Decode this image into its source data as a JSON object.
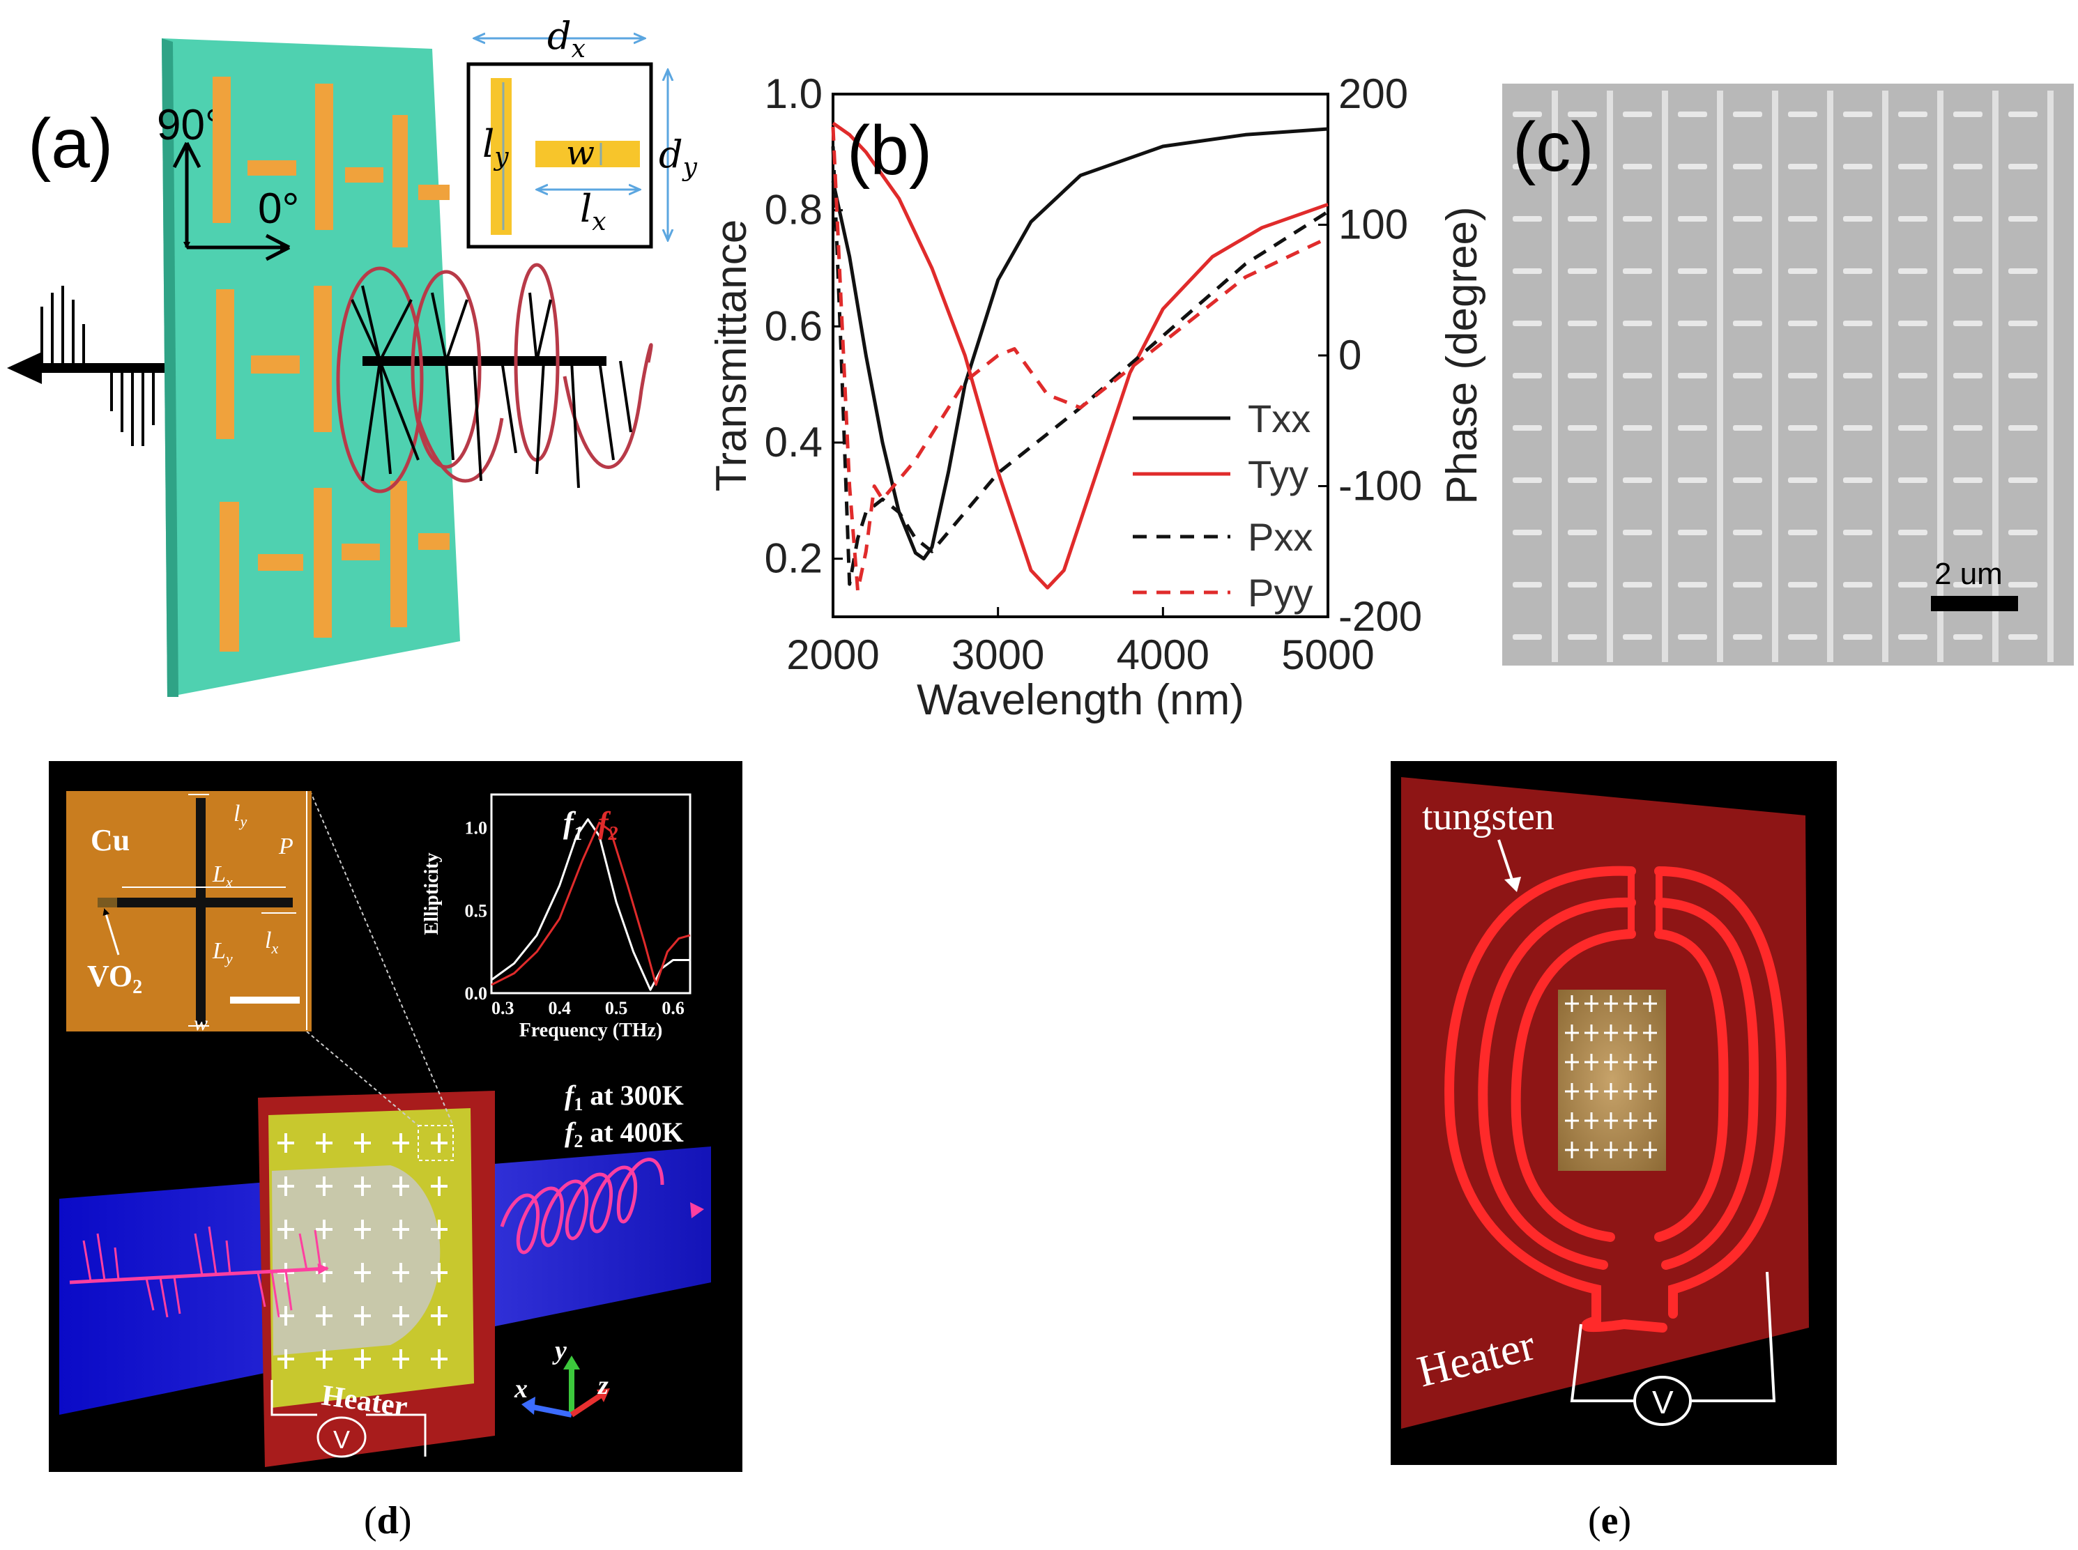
{
  "colors": {
    "green_plate": "#4fd1b0",
    "orange_bar": "#f0a23c",
    "red_curve": "#e02b2b",
    "sem_bg": "#b8b8b8",
    "dark_panel": "#000000",
    "copper": "#c97d1f",
    "heater_red": "#8e1515",
    "beam_blue": "#1a1ad0",
    "pink": "#ff3fa0"
  },
  "panel_a": {
    "label": "(a)",
    "angle_90": "90°",
    "angle_0": "0°",
    "inset": {
      "dx": "d",
      "dx_sub": "x",
      "dy": "d",
      "dy_sub": "y",
      "ly": "l",
      "ly_sub": "y",
      "lx": "l",
      "lx_sub": "x",
      "w": "w"
    }
  },
  "panel_b": {
    "label": "(b)",
    "legend": [
      "Txx",
      "Tyy",
      "Pxx",
      "Pyy"
    ]
  },
  "panel_c": {
    "label": "(c)",
    "scale_bar": "2 um"
  },
  "panel_d": {
    "material_cu": "Cu",
    "material_vo2": "VO",
    "vo2_sub": "2",
    "dims": {
      "ly": "l",
      "ly_sub": "y",
      "P": "P",
      "Lx": "L",
      "Lx_sub": "x",
      "Ly": "L",
      "Ly_sub": "y",
      "lx": "l",
      "lx_sub": "x",
      "w": "w"
    },
    "f1": "f",
    "f1_sub": "1",
    "f2": "f",
    "f2_sub": "2",
    "f1_temp": " at 300K",
    "f2_temp": " at 400K",
    "heater": "Heater",
    "voltage": "V",
    "axis_x": "x",
    "axis_y": "y",
    "axis_z": "z"
  },
  "panel_e": {
    "tungsten": "tungsten",
    "heater": "Heater",
    "voltage": "V"
  },
  "captions": {
    "d": "d",
    "e": "e"
  },
  "chart_data": [
    {
      "type": "line",
      "id": "panel-b",
      "title": "",
      "xlabel": "Wavelength (nm)",
      "ylabel": "Transmittance",
      "y2label": "Phase (degree)",
      "xlim": [
        2000,
        5000
      ],
      "ylim": [
        0.1,
        1.0
      ],
      "y2lim": [
        -200,
        200
      ],
      "xticks": [
        "2000",
        "3000",
        "4000",
        "5000"
      ],
      "yticks": [
        "0.2",
        "0.4",
        "0.6",
        "0.8",
        "1.0"
      ],
      "y2ticks": [
        "-200",
        "-100",
        "0",
        "100",
        "200"
      ],
      "series": [
        {
          "name": "Txx",
          "axis": "left",
          "color": "#111111",
          "dash": "solid",
          "x": [
            2000,
            2100,
            2200,
            2300,
            2400,
            2500,
            2550,
            2600,
            2700,
            2800,
            3000,
            3200,
            3500,
            4000,
            4500,
            5000
          ],
          "y": [
            0.85,
            0.72,
            0.55,
            0.4,
            0.28,
            0.21,
            0.2,
            0.22,
            0.35,
            0.5,
            0.68,
            0.78,
            0.86,
            0.91,
            0.93,
            0.94
          ]
        },
        {
          "name": "Tyy",
          "axis": "left",
          "color": "#e02b2b",
          "dash": "solid",
          "x": [
            2000,
            2100,
            2200,
            2400,
            2600,
            2800,
            3000,
            3200,
            3300,
            3400,
            3600,
            3800,
            4000,
            4300,
            4600,
            5000
          ],
          "y": [
            0.95,
            0.93,
            0.9,
            0.82,
            0.7,
            0.55,
            0.35,
            0.18,
            0.15,
            0.18,
            0.35,
            0.52,
            0.63,
            0.72,
            0.77,
            0.81
          ]
        },
        {
          "name": "Pxx",
          "axis": "right",
          "color": "#111111",
          "dash": "dashed",
          "x": [
            2000,
            2050,
            2100,
            2150,
            2200,
            2300,
            2400,
            2500,
            2600,
            2800,
            3000,
            3500,
            4000,
            4500,
            5000
          ],
          "y": [
            160,
            0,
            -175,
            -140,
            -120,
            -110,
            -120,
            -140,
            -150,
            -120,
            -90,
            -40,
            15,
            70,
            110
          ]
        },
        {
          "name": "Pyy",
          "axis": "right",
          "color": "#e02b2b",
          "dash": "dashed",
          "x": [
            2000,
            2100,
            2150,
            2200,
            2250,
            2300,
            2500,
            2800,
            3000,
            3100,
            3300,
            3500,
            4000,
            4500,
            5000
          ],
          "y": [
            175,
            -100,
            -180,
            -150,
            -100,
            -110,
            -80,
            -20,
            0,
            5,
            -30,
            -40,
            10,
            60,
            90
          ]
        }
      ]
    },
    {
      "type": "line",
      "id": "panel-d-inset",
      "xlabel": "Frequency (THz)",
      "ylabel": "Ellipticity",
      "xlim": [
        0.28,
        0.63
      ],
      "ylim": [
        0,
        1.2
      ],
      "xticks": [
        "0.3",
        "0.4",
        "0.5",
        "0.6"
      ],
      "yticks": [
        "0.0",
        "0.5",
        "1.0"
      ],
      "series": [
        {
          "name": "f1",
          "color": "#ffffff",
          "x": [
            0.28,
            0.32,
            0.36,
            0.4,
            0.43,
            0.45,
            0.47,
            0.5,
            0.53,
            0.56,
            0.58,
            0.6,
            0.63
          ],
          "y": [
            0.08,
            0.18,
            0.35,
            0.65,
            0.95,
            1.05,
            0.95,
            0.55,
            0.25,
            0.02,
            0.15,
            0.2,
            0.2
          ]
        },
        {
          "name": "f2",
          "color": "#e02b2b",
          "x": [
            0.28,
            0.32,
            0.36,
            0.4,
            0.44,
            0.47,
            0.49,
            0.52,
            0.55,
            0.57,
            0.59,
            0.61,
            0.63
          ],
          "y": [
            0.05,
            0.12,
            0.25,
            0.45,
            0.8,
            1.03,
            0.98,
            0.65,
            0.3,
            0.05,
            0.25,
            0.33,
            0.35
          ]
        }
      ]
    }
  ]
}
